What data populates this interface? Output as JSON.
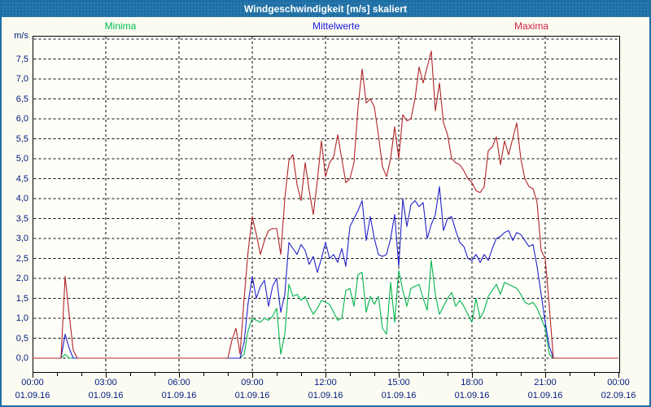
{
  "window": {
    "title": "Windgeschwindigkeit [m/s] skaliert"
  },
  "legend": [
    {
      "label": "Minima",
      "color": "#00bc4e"
    },
    {
      "label": "Mittelwerte",
      "color": "#1a1ae0"
    },
    {
      "label": "Maxima",
      "color": "#cc2244"
    }
  ],
  "colors": {
    "titlebar_bg": "#1d6fa5",
    "frame": "#000000",
    "axis_text": "#001a80",
    "plot_bg": "#fffffa",
    "page_bg": "#fbfbf1"
  },
  "chart_data": {
    "type": "line",
    "title": "Windgeschwindigkeit [m/s] skaliert",
    "ylabel": "m/s",
    "xlabel": "",
    "ylim": [
      0,
      8.08
    ],
    "ytick_step": 0.5,
    "ytick_labels": [
      "0,0",
      "0,5",
      "1,0",
      "1,5",
      "2,0",
      "2,5",
      "3,0",
      "3,5",
      "4,0",
      "4,5",
      "5,0",
      "5,5",
      "6,0",
      "6,5",
      "7,0",
      "7,5"
    ],
    "grid": "dotted",
    "legend_position": "top",
    "x_start_min": 0,
    "x_end_min": 1440,
    "sample_step_min": 10,
    "xticks_major": [
      {
        "time": "00:00",
        "date": "01.09.16"
      },
      {
        "time": "03:00",
        "date": "01.09.16"
      },
      {
        "time": "06:00",
        "date": "01.09.16"
      },
      {
        "time": "09:00",
        "date": "01.09.16"
      },
      {
        "time": "12:00",
        "date": "01.09.16"
      },
      {
        "time": "15:00",
        "date": "01.09.16"
      },
      {
        "time": "18:00",
        "date": "01.09.16"
      },
      {
        "time": "21:00",
        "date": "01.09.16"
      },
      {
        "time": "00:00",
        "date": "02.09.16"
      }
    ],
    "xtick_minor_every_min": 60,
    "series": [
      {
        "name": "Minima",
        "color": "#00b44c",
        "values": [
          0,
          0,
          0,
          0,
          0,
          0,
          0,
          0,
          0.1,
          0,
          0,
          0,
          0,
          0,
          0,
          0,
          0,
          0,
          0,
          0,
          0,
          0,
          0,
          0,
          0,
          0,
          0,
          0,
          0,
          0,
          0,
          0,
          0,
          0,
          0,
          0,
          0,
          0,
          0,
          0,
          0,
          0,
          0,
          0,
          0,
          0,
          0,
          0,
          0,
          0,
          0,
          0,
          0.1,
          0.7,
          1.0,
          0.95,
          0.9,
          1.0,
          0.95,
          1.05,
          1.25,
          0.1,
          0.6,
          1.85,
          1.55,
          1.6,
          1.45,
          1.55,
          1.3,
          1.1,
          1.25,
          1.45,
          1.4,
          1.35,
          1.15,
          0.95,
          1.0,
          1.7,
          1.75,
          1.3,
          2.1,
          2.15,
          1.15,
          1.55,
          1.35,
          1.55,
          0.75,
          0.6,
          1.9,
          0.9,
          2.2,
          1.7,
          1.3,
          1.75,
          1.8,
          1.85,
          1.5,
          1.2,
          2.45,
          1.6,
          1.1,
          1.3,
          1.5,
          1.65,
          1.3,
          1.45,
          1.3,
          1.1,
          0.9,
          1.5,
          1.0,
          1.2,
          1.55,
          1.7,
          1.85,
          1.6,
          1.9,
          1.85,
          1.8,
          1.75,
          1.6,
          1.4,
          1.35,
          1.4,
          1.25,
          1.0,
          0.75,
          0.1,
          0,
          0,
          0,
          0,
          0,
          0,
          0,
          0,
          0,
          0,
          0,
          0,
          0,
          0,
          0,
          0,
          0
        ]
      },
      {
        "name": "Mittelwerte",
        "color": "#2222cc",
        "values": [
          0,
          0,
          0,
          0,
          0,
          0,
          0,
          0,
          0.6,
          0.25,
          0,
          0,
          0,
          0,
          0,
          0,
          0,
          0,
          0,
          0,
          0,
          0,
          0,
          0,
          0,
          0,
          0,
          0,
          0,
          0,
          0,
          0,
          0,
          0,
          0,
          0,
          0,
          0,
          0,
          0,
          0,
          0,
          0,
          0,
          0,
          0,
          0,
          0,
          0,
          0,
          0,
          0,
          0.4,
          1.4,
          2.05,
          1.5,
          1.8,
          1.95,
          1.3,
          1.8,
          2.0,
          1.15,
          1.6,
          2.9,
          2.75,
          2.6,
          2.85,
          2.7,
          2.35,
          2.55,
          2.15,
          2.5,
          2.9,
          2.5,
          2.6,
          2.4,
          2.75,
          2.3,
          3.3,
          3.5,
          3.7,
          3.95,
          2.95,
          3.55,
          3.0,
          2.6,
          2.55,
          2.6,
          3.0,
          3.6,
          2.3,
          4.0,
          3.3,
          3.85,
          3.95,
          3.8,
          3.9,
          3.0,
          3.35,
          3.6,
          4.3,
          3.2,
          3.5,
          3.55,
          3.2,
          2.9,
          2.8,
          2.5,
          2.45,
          2.6,
          2.4,
          2.6,
          2.45,
          2.75,
          3.0,
          3.05,
          3.15,
          3.2,
          2.95,
          3.15,
          3.1,
          2.95,
          2.8,
          2.85,
          2.3,
          1.6,
          0.9,
          0.3,
          0,
          0,
          0,
          0,
          0,
          0,
          0,
          0,
          0,
          0,
          0,
          0,
          0,
          0,
          0,
          0,
          0
        ]
      },
      {
        "name": "Maxima",
        "color": "#b02428",
        "values": [
          0,
          0,
          0,
          0,
          0,
          0,
          0,
          0,
          2.05,
          1.1,
          0.2,
          0,
          0,
          0,
          0,
          0,
          0,
          0,
          0,
          0,
          0,
          0,
          0,
          0,
          0,
          0,
          0,
          0,
          0,
          0,
          0,
          0,
          0,
          0,
          0,
          0,
          0,
          0,
          0,
          0,
          0,
          0,
          0,
          0,
          0,
          0,
          0,
          0,
          0,
          0.45,
          0.75,
          0.1,
          1.5,
          2.7,
          3.55,
          3.1,
          2.6,
          2.95,
          3.2,
          3.25,
          3.25,
          2.6,
          4.0,
          4.95,
          5.1,
          4.35,
          3.95,
          4.9,
          4.2,
          3.6,
          4.45,
          5.45,
          4.55,
          4.9,
          5.05,
          5.6,
          5.0,
          4.4,
          4.5,
          4.9,
          6.3,
          7.25,
          6.4,
          6.5,
          6.3,
          5.6,
          4.8,
          4.55,
          5.0,
          5.8,
          5.0,
          6.1,
          5.95,
          6.0,
          6.5,
          7.3,
          6.9,
          7.3,
          7.7,
          6.2,
          6.9,
          5.9,
          5.6,
          5.0,
          4.9,
          4.85,
          4.7,
          4.5,
          4.4,
          4.2,
          4.15,
          4.3,
          5.2,
          5.3,
          5.55,
          4.85,
          5.45,
          5.1,
          5.5,
          5.9,
          5.0,
          4.5,
          4.3,
          4.25,
          3.9,
          2.7,
          2.5,
          1.3,
          0,
          0,
          0,
          0,
          0,
          0,
          0,
          0,
          0,
          0,
          0,
          0,
          0,
          0,
          0,
          0,
          0
        ]
      }
    ]
  }
}
